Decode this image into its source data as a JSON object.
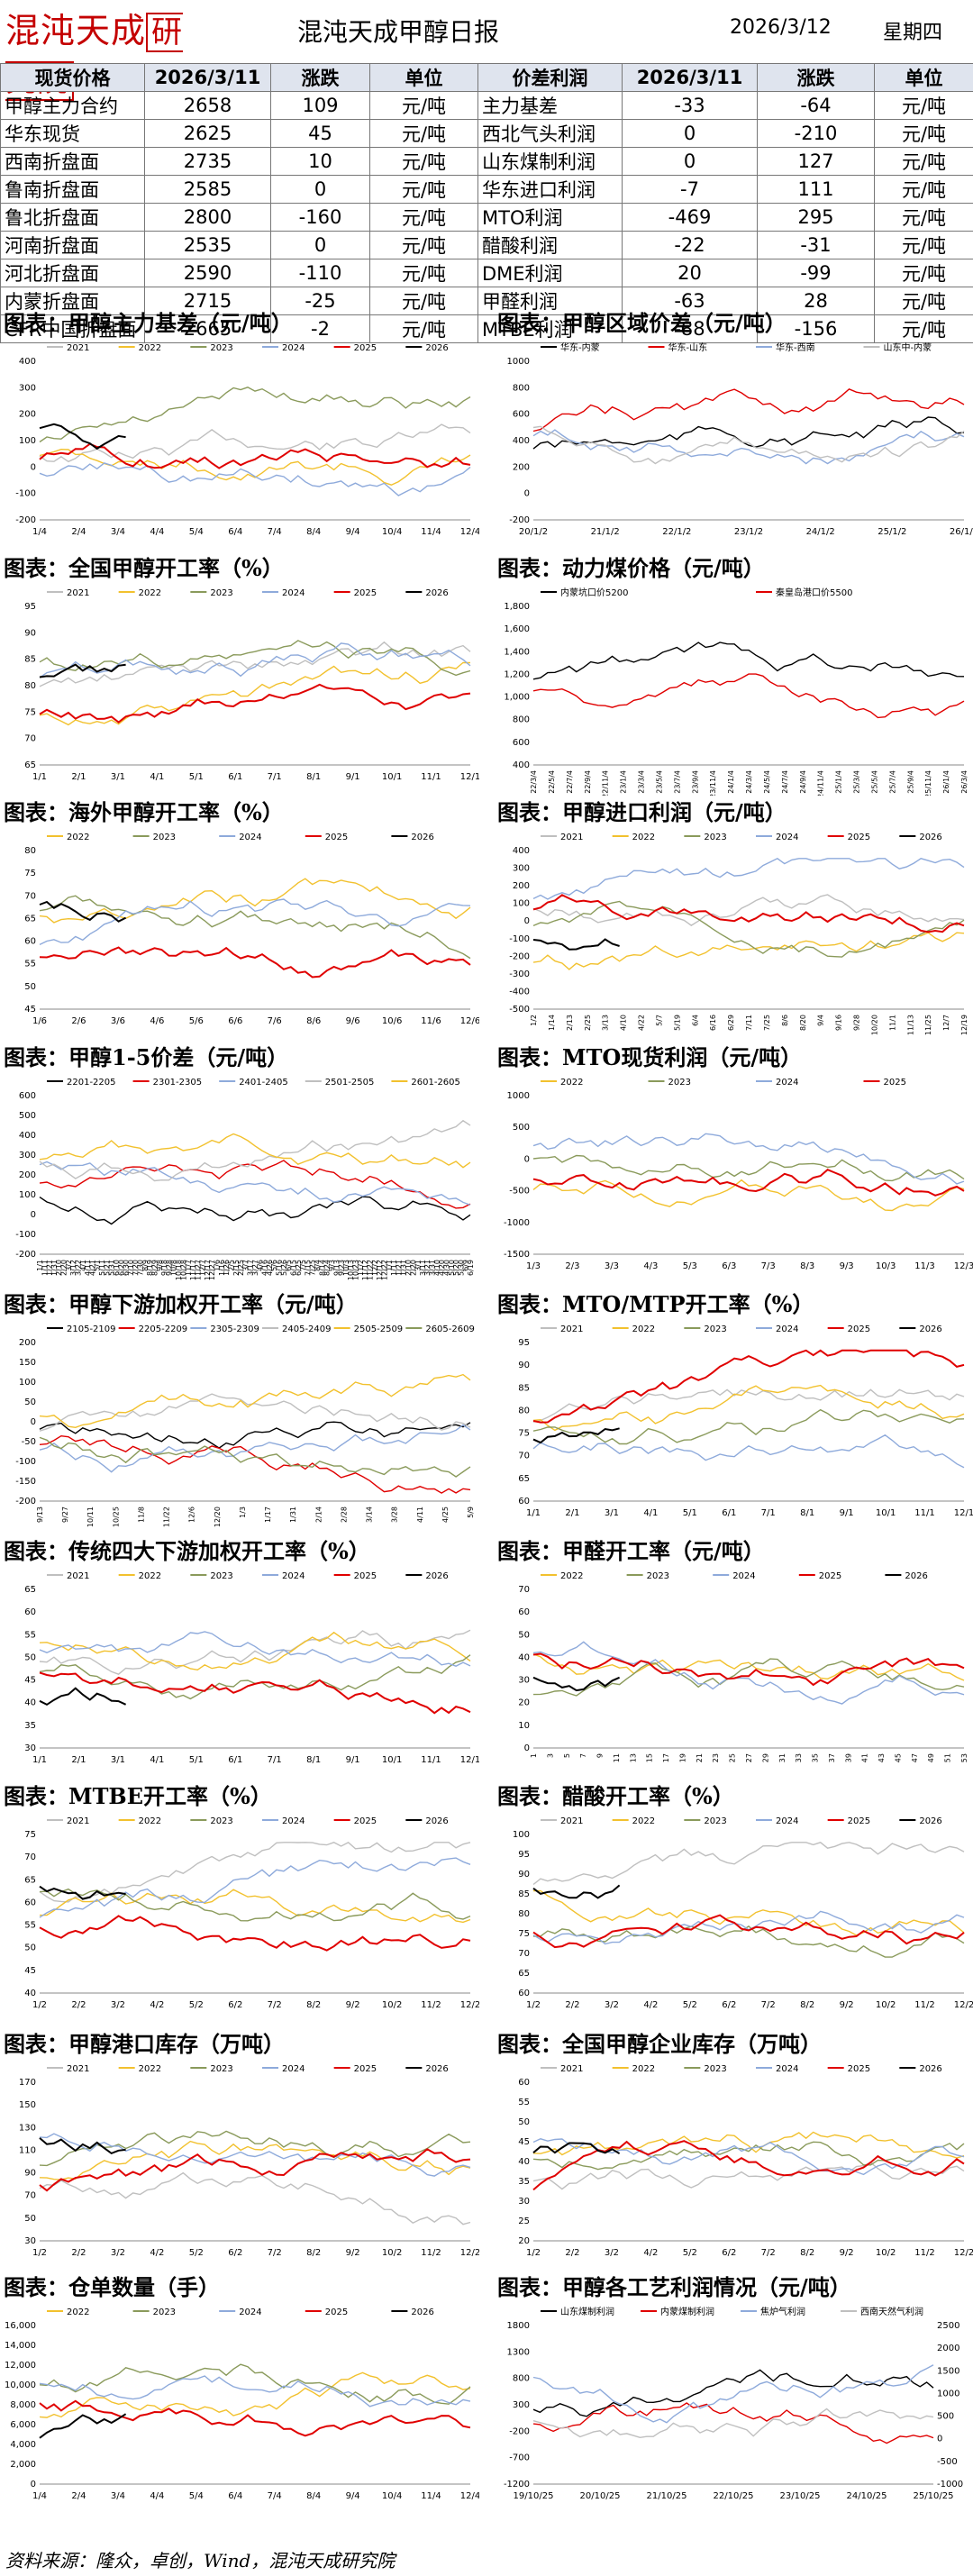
{
  "header": {
    "logo": "混沌天成",
    "logo_boxed": "研究院",
    "title": "混沌天成甲醇日报",
    "date": "2026/3/12",
    "weekday": "星期四"
  },
  "table": {
    "headers": [
      "现货价格",
      "2026/3/11",
      "涨跌",
      "单位",
      "价差利润",
      "2026/3/11",
      "涨跌",
      "单位"
    ],
    "rows": [
      [
        "甲醇主力合约",
        "2658",
        "109",
        "元/吨",
        "主力基差",
        "-33",
        "-64",
        "元/吨"
      ],
      [
        "华东现货",
        "2625",
        "45",
        "元/吨",
        "西北气头利润",
        "0",
        "-210",
        "元/吨"
      ],
      [
        "西南折盘面",
        "2735",
        "10",
        "元/吨",
        "山东煤制利润",
        "0",
        "127",
        "元/吨"
      ],
      [
        "鲁南折盘面",
        "2585",
        "0",
        "元/吨",
        "华东进口利润",
        "-7",
        "111",
        "元/吨"
      ],
      [
        "鲁北折盘面",
        "2800",
        "-160",
        "元/吨",
        "MTO利润",
        "-469",
        "295",
        "元/吨"
      ],
      [
        "河南折盘面",
        "2535",
        "0",
        "元/吨",
        "醋酸利润",
        "-22",
        "-31",
        "元/吨"
      ],
      [
        "河北折盘面",
        "2590",
        "-110",
        "元/吨",
        "DME利润",
        "20",
        "-99",
        "元/吨"
      ],
      [
        "内蒙折盘面",
        "2715",
        "-25",
        "元/吨",
        "甲醛利润",
        "-63",
        "28",
        "元/吨"
      ],
      [
        "CFR中国折盘面",
        "2665",
        "-2",
        "元/吨",
        "MTBE利润",
        "-88",
        "-156",
        "元/吨"
      ]
    ]
  },
  "charts": [
    {
      "title": "图表：甲醇主力基差（元/吨）",
      "legend": [
        "2021",
        "2022",
        "2023",
        "2024",
        "2025",
        "2026"
      ],
      "yticks": [
        "400",
        "300",
        "200",
        "100",
        "0",
        "-100",
        "-200"
      ],
      "xticks": [
        "1/4",
        "2/4",
        "3/4",
        "4/4",
        "5/4",
        "6/4",
        "7/4",
        "8/4",
        "9/4",
        "10/4",
        "11/4",
        "12/4"
      ]
    },
    {
      "title": "图表：甲醇区域价差（元/吨）",
      "legend": [
        "华东-内蒙",
        "华东-山东",
        "华东-西南",
        "山东中-内蒙"
      ],
      "yticks": [
        "1000",
        "800",
        "600",
        "400",
        "200",
        "0",
        "-200"
      ],
      "xticks": [
        "20/1/2",
        "21/1/2",
        "22/1/2",
        "23/1/2",
        "24/1/2",
        "25/1/2",
        "26/1/2"
      ]
    },
    {
      "title": "图表：全国甲醇开工率（%）",
      "legend": [
        "2021",
        "2022",
        "2023",
        "2024",
        "2025",
        "2026"
      ],
      "yticks": [
        "95",
        "90",
        "85",
        "80",
        "75",
        "70",
        "65"
      ],
      "xticks": [
        "1/1",
        "2/1",
        "3/1",
        "4/1",
        "5/1",
        "6/1",
        "7/1",
        "8/1",
        "9/1",
        "10/1",
        "11/1",
        "12/1"
      ]
    },
    {
      "title": "图表：动力煤价格（元/吨）",
      "legend": [
        "内蒙坑口价5200",
        "秦皇岛港口价5500"
      ],
      "yticks": [
        "1,800",
        "1,600",
        "1,400",
        "1,200",
        "1,000",
        "800",
        "600",
        "400"
      ],
      "xticks": [
        "22/3/4",
        "22/5/4",
        "22/7/4",
        "22/9/4",
        "22/11/4",
        "23/1/4",
        "23/3/4",
        "23/5/4",
        "23/7/4",
        "23/9/4",
        "23/11/4",
        "24/1/4",
        "24/3/4",
        "24/5/4",
        "24/7/4",
        "24/9/4",
        "24/11/4",
        "25/1/4",
        "25/3/4",
        "25/5/4",
        "25/7/4",
        "25/9/4",
        "25/11/4",
        "26/1/4",
        "26/3/4"
      ]
    },
    {
      "title": "图表：海外甲醇开工率（%）",
      "legend": [
        "2022",
        "2023",
        "2024",
        "2025",
        "2026"
      ],
      "yticks": [
        "80",
        "75",
        "70",
        "65",
        "60",
        "55",
        "50",
        "45"
      ],
      "xticks": [
        "1/6",
        "2/6",
        "3/6",
        "4/6",
        "5/6",
        "6/6",
        "7/6",
        "8/6",
        "9/6",
        "10/6",
        "11/6",
        "12/6"
      ]
    },
    {
      "title": "图表：甲醇进口利润（元/吨）",
      "legend": [
        "2021",
        "2022",
        "2023",
        "2024",
        "2025",
        "2026"
      ],
      "yticks": [
        "400",
        "300",
        "200",
        "100",
        "0",
        "-100",
        "-200",
        "-300",
        "-400",
        "-500"
      ],
      "xticks": [
        "1/2",
        "1/14",
        "2/13",
        "2/25",
        "3/13",
        "4/10",
        "4/22",
        "5/7",
        "5/19",
        "6/4",
        "6/16",
        "6/29",
        "7/11",
        "7/25",
        "8/6",
        "8/20",
        "9/4",
        "9/16",
        "9/28",
        "10/20",
        "11/1",
        "11/13",
        "11/25",
        "12/7",
        "12/19"
      ]
    },
    {
      "title": "图表：甲醇1-5价差（元/吨）",
      "legend": [
        "2201-2205",
        "2301-2305",
        "2401-2405",
        "2501-2505",
        "2601-2605"
      ],
      "yticks": [
        "600",
        "500",
        "400",
        "300",
        "200",
        "100",
        "0",
        "-100",
        "-200"
      ],
      "xticks": [
        "1/1",
        "1/11",
        "1/21",
        "1/31",
        "2/10",
        "2/20",
        "3/2",
        "3/12",
        "3/22",
        "4/1",
        "4/11",
        "4/21",
        "5/1",
        "5/11",
        "5/21",
        "5/31",
        "6/10",
        "6/20",
        "6/30",
        "7/10",
        "7/20",
        "7/30",
        "8/9",
        "8/19",
        "8/29",
        "9/8",
        "9/18",
        "9/28",
        "10/8",
        "10/18",
        "10/28",
        "11/7",
        "11/17",
        "11/27",
        "12/7",
        "12/17",
        "12/27",
        "1/6",
        "1/16",
        "1/26",
        "2/5",
        "2/15",
        "2/25",
        "3/7",
        "3/17",
        "3/27",
        "4/6",
        "4/16",
        "4/26",
        "5/6",
        "5/16",
        "5/26",
        "6/5",
        "6/15",
        "6/25",
        "7/5",
        "7/15",
        "7/25",
        "8/4",
        "8/14",
        "8/24",
        "9/3",
        "9/13",
        "9/23",
        "10/3",
        "10/13",
        "10/23",
        "11/2",
        "11/12",
        "11/22",
        "12/2",
        "12/12",
        "12/22",
        "1/1",
        "1/11",
        "1/21",
        "1/31",
        "2/10",
        "2/20",
        "3/1",
        "3/11",
        "3/21",
        "3/31",
        "4/10",
        "4/20",
        "4/30",
        "5/10",
        "5/20",
        "5/30",
        "6/9",
        "6/19"
      ]
    },
    {
      "title": "图表：MTO现货利润（元/吨）",
      "legend": [
        "2022",
        "2023",
        "2024",
        "2025"
      ],
      "yticks": [
        "1000",
        "500",
        "0",
        "-500",
        "-1000",
        "-1500"
      ],
      "xticks": [
        "1/3",
        "2/3",
        "3/3",
        "4/3",
        "5/3",
        "6/3",
        "7/3",
        "8/3",
        "9/3",
        "10/3",
        "11/3",
        "12/3"
      ]
    },
    {
      "title": "图表：甲醇下游加权开工率（元/吨）",
      "legend": [
        "2105-2109",
        "2205-2209",
        "2305-2309",
        "2405-2409",
        "2505-2509",
        "2605-2609"
      ],
      "yticks": [
        "200",
        "150",
        "100",
        "50",
        "0",
        "-50",
        "-100",
        "-150",
        "-200"
      ],
      "xticks": [
        "9/13",
        "9/27",
        "10/11",
        "10/25",
        "11/8",
        "11/22",
        "12/6",
        "12/20",
        "1/3",
        "1/17",
        "1/31",
        "2/14",
        "2/28",
        "3/14",
        "3/28",
        "4/11",
        "4/25",
        "5/9"
      ]
    },
    {
      "title": "图表：MTO/MTP开工率（%）",
      "legend": [
        "2021",
        "2022",
        "2023",
        "2024",
        "2025",
        "2026"
      ],
      "yticks": [
        "95",
        "90",
        "85",
        "80",
        "75",
        "70",
        "65",
        "60"
      ],
      "xticks": [
        "1/1",
        "2/1",
        "3/1",
        "4/1",
        "5/1",
        "6/1",
        "7/1",
        "8/1",
        "9/1",
        "10/1",
        "11/1",
        "12/1"
      ]
    },
    {
      "title": "图表：传统四大下游加权开工率（%）",
      "legend": [
        "2021",
        "2022",
        "2023",
        "2024",
        "2025",
        "2026"
      ],
      "yticks": [
        "65",
        "60",
        "55",
        "50",
        "45",
        "40",
        "35",
        "30"
      ],
      "xticks": [
        "1/1",
        "2/1",
        "3/1",
        "4/1",
        "5/1",
        "6/1",
        "7/1",
        "8/1",
        "9/1",
        "10/1",
        "11/1",
        "12/1"
      ]
    },
    {
      "title": "图表：甲醛开工率（元/吨）",
      "legend": [
        "2022",
        "2023",
        "2024",
        "2025",
        "2026"
      ],
      "yticks": [
        "70",
        "60",
        "50",
        "40",
        "30",
        "20",
        "10",
        "0"
      ],
      "xticks": [
        "1",
        "3",
        "5",
        "7",
        "9",
        "11",
        "13",
        "15",
        "17",
        "19",
        "21",
        "23",
        "25",
        "27",
        "29",
        "31",
        "33",
        "35",
        "37",
        "39",
        "41",
        "43",
        "45",
        "47",
        "49",
        "51",
        "53"
      ]
    },
    {
      "title": "图表：MTBE开工率（%）",
      "legend": [
        "2021",
        "2022",
        "2023",
        "2024",
        "2025",
        "2026"
      ],
      "yticks": [
        "75",
        "70",
        "65",
        "60",
        "55",
        "50",
        "45",
        "40"
      ],
      "xticks": [
        "1/2",
        "2/2",
        "3/2",
        "4/2",
        "5/2",
        "6/2",
        "7/2",
        "8/2",
        "9/2",
        "10/2",
        "11/2",
        "12/2"
      ]
    },
    {
      "title": "图表：醋酸开工率（%）",
      "legend": [
        "2021",
        "2022",
        "2023",
        "2024",
        "2025",
        "2026"
      ],
      "yticks": [
        "100",
        "95",
        "90",
        "85",
        "80",
        "75",
        "70",
        "65",
        "60"
      ],
      "xticks": [
        "1/2",
        "2/2",
        "3/2",
        "4/2",
        "5/2",
        "6/2",
        "7/2",
        "8/2",
        "9/2",
        "10/2",
        "11/2",
        "12/2"
      ]
    },
    {
      "title": "图表：甲醇港口库存（万吨）",
      "legend": [
        "2021",
        "2022",
        "2023",
        "2024",
        "2025",
        "2026"
      ],
      "yticks": [
        "170",
        "150",
        "130",
        "110",
        "90",
        "70",
        "50",
        "30"
      ],
      "xticks": [
        "1/2",
        "2/2",
        "3/2",
        "4/2",
        "5/2",
        "6/2",
        "7/2",
        "8/2",
        "9/2",
        "10/2",
        "11/2",
        "12/2"
      ]
    },
    {
      "title": "图表：全国甲醇企业库存（万吨）",
      "legend": [
        "2021",
        "2022",
        "2023",
        "2024",
        "2025",
        "2026"
      ],
      "yticks": [
        "60",
        "55",
        "50",
        "45",
        "40",
        "35",
        "30",
        "25",
        "20"
      ],
      "xticks": [
        "1/2",
        "2/2",
        "3/2",
        "4/2",
        "5/2",
        "6/2",
        "7/2",
        "8/2",
        "9/2",
        "10/2",
        "11/2",
        "12/2"
      ]
    },
    {
      "title": "图表：仓单数量（手）",
      "legend": [
        "2022",
        "2023",
        "2024",
        "2025",
        "2026"
      ],
      "yticks": [
        "16,000",
        "14,000",
        "12,000",
        "10,000",
        "8,000",
        "6,000",
        "4,000",
        "2,000",
        "0"
      ],
      "xticks": [
        "1/4",
        "2/4",
        "3/4",
        "4/4",
        "5/4",
        "6/4",
        "7/4",
        "8/4",
        "9/4",
        "10/4",
        "11/4",
        "12/4"
      ]
    },
    {
      "title": "图表：甲醇各工艺利润情况（元/吨）",
      "legend": [
        "山东煤制利润",
        "内蒙煤制利润",
        "焦炉气利润",
        "西南天然气利润"
      ],
      "yticks": [
        "1800",
        "1300",
        "800",
        "300",
        "-200",
        "-700",
        "-1200"
      ],
      "y2ticks": [
        "2500",
        "2000",
        "1500",
        "1000",
        "500",
        "0",
        "-500",
        "-1000"
      ],
      "xticks": [
        "19/10/25",
        "20/10/25",
        "21/10/25",
        "22/10/25",
        "23/10/25",
        "24/10/25",
        "25/10/25"
      ]
    }
  ],
  "footer": "资料来源：隆众，卓创，Wind，混沌天成研究院",
  "colors": {
    "y2021": "#bfbfbf",
    "y2022": "#f2c12e",
    "y2023": "#8a9a5b",
    "y2024": "#8eaadb",
    "y2025": "#e00000",
    "y2026": "#000000"
  }
}
